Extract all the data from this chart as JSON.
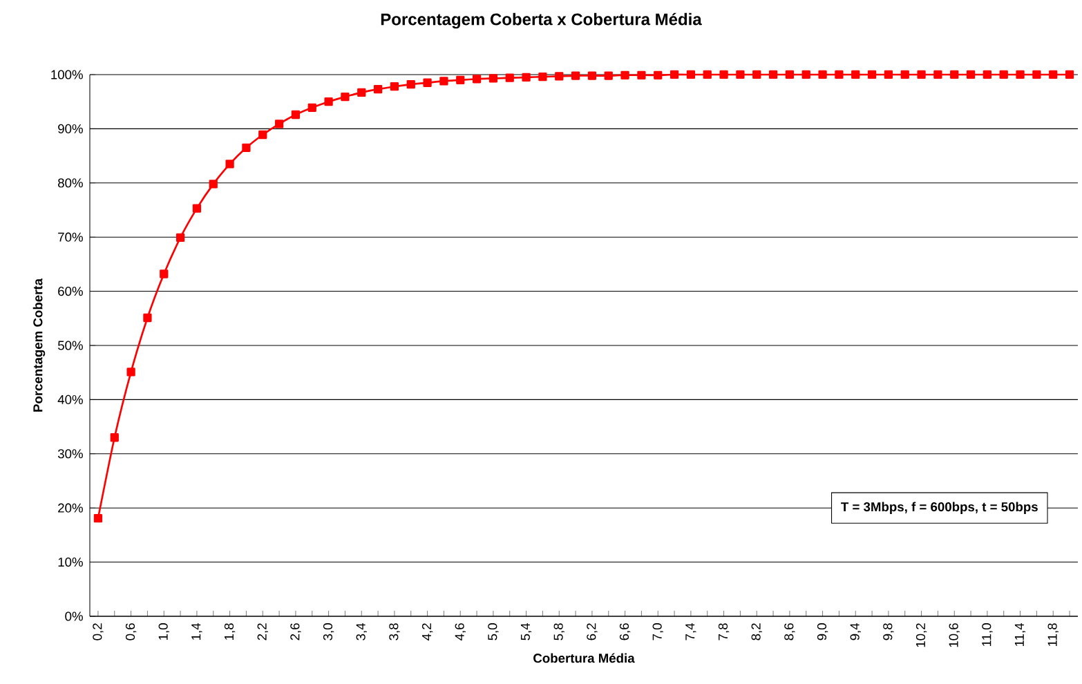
{
  "chart_data": {
    "type": "line",
    "title": "Porcentagem Coberta x Cobertura Média",
    "xlabel": "Cobertura Média",
    "ylabel": "Porcentagem Coberta",
    "categories": [
      "0,2",
      null,
      "0,6",
      null,
      "1,0",
      null,
      "1,4",
      null,
      "1,8",
      null,
      "2,2",
      null,
      "2,6",
      null,
      "3,0",
      null,
      "3,4",
      null,
      "3,8",
      null,
      "4,2",
      null,
      "4,6",
      null,
      "5,0",
      null,
      "5,4",
      null,
      "5,8",
      null,
      "6,2",
      null,
      "6,6",
      null,
      "7,0",
      null,
      "7,4",
      null,
      "7,8",
      null,
      "8,2",
      null,
      "8,6",
      null,
      "9,0",
      null,
      "9,4",
      null,
      "9,8",
      null,
      "10,2",
      null,
      "10,6",
      null,
      "11,0",
      null,
      "11,4",
      null,
      "11,8",
      null
    ],
    "series": [
      {
        "color": "#ff0000",
        "values": [
          18.1,
          33.0,
          45.1,
          55.1,
          63.2,
          69.9,
          75.3,
          79.8,
          83.5,
          86.5,
          88.9,
          90.9,
          92.6,
          93.9,
          95.0,
          95.9,
          96.7,
          97.3,
          97.8,
          98.2,
          98.5,
          98.8,
          99.0,
          99.2,
          99.3,
          99.4,
          99.5,
          99.6,
          99.7,
          99.8,
          99.8,
          99.8,
          99.9,
          99.9,
          99.9,
          100,
          100,
          100,
          100,
          100,
          100,
          100,
          100,
          100,
          100,
          100,
          100,
          100,
          100,
          100,
          100,
          100,
          100,
          100,
          100,
          100,
          100,
          100,
          100,
          100
        ]
      }
    ],
    "ylim": [
      0,
      100
    ],
    "yticks": [
      {
        "value": 0,
        "label": "0%"
      },
      {
        "value": 10,
        "label": "10%"
      },
      {
        "value": 20,
        "label": "20%"
      },
      {
        "value": 30,
        "label": "30%"
      },
      {
        "value": 40,
        "label": "40%"
      },
      {
        "value": 50,
        "label": "50%"
      },
      {
        "value": 60,
        "label": "60%"
      },
      {
        "value": 70,
        "label": "70%"
      },
      {
        "value": 80,
        "label": "80%"
      },
      {
        "value": 90,
        "label": "90%"
      },
      {
        "value": 100,
        "label": "100%"
      }
    ],
    "grid": "y",
    "marker": "square",
    "annotations": [
      "T = 3Mbps, f = 600bps, t = 50bps"
    ]
  }
}
